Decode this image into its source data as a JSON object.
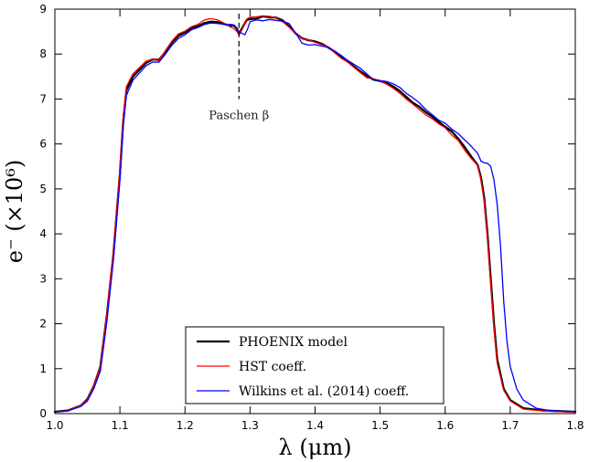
{
  "chart_data": {
    "type": "line",
    "xlabel": "λ (μm)",
    "ylabel": "e⁻ (×10⁶)",
    "xlim": [
      1.0,
      1.8
    ],
    "ylim": [
      0,
      9
    ],
    "x_ticks": [
      "1.0",
      "1.1",
      "1.2",
      "1.3",
      "1.4",
      "1.5",
      "1.6",
      "1.7",
      "1.8"
    ],
    "y_ticks": [
      "0",
      "1",
      "2",
      "3",
      "4",
      "5",
      "6",
      "7",
      "8",
      "9"
    ],
    "grid": false,
    "legend_position": "bottom-center",
    "annotation": {
      "text": "Paschen β",
      "x": 1.283,
      "y_from": 7.0,
      "y_to": 8.9
    },
    "series": [
      {
        "name": "PHOENIX model",
        "color": "#000000",
        "line_width": 2.3,
        "points": [
          [
            1.0,
            0.04
          ],
          [
            1.02,
            0.07
          ],
          [
            1.04,
            0.18
          ],
          [
            1.05,
            0.32
          ],
          [
            1.06,
            0.62
          ],
          [
            1.07,
            1.05
          ],
          [
            1.08,
            2.2
          ],
          [
            1.09,
            3.55
          ],
          [
            1.1,
            5.35
          ],
          [
            1.105,
            6.5
          ],
          [
            1.11,
            7.2
          ],
          [
            1.12,
            7.5
          ],
          [
            1.13,
            7.65
          ],
          [
            1.14,
            7.8
          ],
          [
            1.15,
            7.88
          ],
          [
            1.16,
            7.87
          ],
          [
            1.17,
            8.05
          ],
          [
            1.18,
            8.26
          ],
          [
            1.19,
            8.41
          ],
          [
            1.2,
            8.48
          ],
          [
            1.21,
            8.58
          ],
          [
            1.22,
            8.62
          ],
          [
            1.23,
            8.69
          ],
          [
            1.24,
            8.72
          ],
          [
            1.25,
            8.71
          ],
          [
            1.26,
            8.67
          ],
          [
            1.27,
            8.63
          ],
          [
            1.275,
            8.64
          ],
          [
            1.28,
            8.56
          ],
          [
            1.283,
            8.45
          ],
          [
            1.288,
            8.58
          ],
          [
            1.295,
            8.76
          ],
          [
            1.3,
            8.78
          ],
          [
            1.31,
            8.79
          ],
          [
            1.32,
            8.84
          ],
          [
            1.33,
            8.82
          ],
          [
            1.34,
            8.81
          ],
          [
            1.35,
            8.75
          ],
          [
            1.36,
            8.62
          ],
          [
            1.37,
            8.46
          ],
          [
            1.38,
            8.35
          ],
          [
            1.39,
            8.31
          ],
          [
            1.4,
            8.28
          ],
          [
            1.41,
            8.23
          ],
          [
            1.42,
            8.15
          ],
          [
            1.43,
            8.05
          ],
          [
            1.44,
            7.93
          ],
          [
            1.45,
            7.84
          ],
          [
            1.46,
            7.72
          ],
          [
            1.47,
            7.61
          ],
          [
            1.48,
            7.51
          ],
          [
            1.49,
            7.43
          ],
          [
            1.5,
            7.4
          ],
          [
            1.51,
            7.35
          ],
          [
            1.52,
            7.28
          ],
          [
            1.53,
            7.18
          ],
          [
            1.54,
            7.05
          ],
          [
            1.55,
            6.92
          ],
          [
            1.56,
            6.83
          ],
          [
            1.57,
            6.71
          ],
          [
            1.58,
            6.61
          ],
          [
            1.59,
            6.49
          ],
          [
            1.6,
            6.38
          ],
          [
            1.61,
            6.28
          ],
          [
            1.62,
            6.12
          ],
          [
            1.63,
            5.93
          ],
          [
            1.64,
            5.72
          ],
          [
            1.65,
            5.53
          ],
          [
            1.655,
            5.25
          ],
          [
            1.66,
            4.8
          ],
          [
            1.665,
            4.0
          ],
          [
            1.67,
            3.0
          ],
          [
            1.675,
            2.0
          ],
          [
            1.68,
            1.2
          ],
          [
            1.69,
            0.55
          ],
          [
            1.7,
            0.3
          ],
          [
            1.72,
            0.12
          ],
          [
            1.75,
            0.07
          ],
          [
            1.8,
            0.04
          ]
        ]
      },
      {
        "name": "HST coeff.",
        "color": "#ff0000",
        "line_width": 1.3,
        "points": [
          [
            1.0,
            0.04
          ],
          [
            1.02,
            0.07
          ],
          [
            1.04,
            0.18
          ],
          [
            1.05,
            0.31
          ],
          [
            1.06,
            0.62
          ],
          [
            1.07,
            1.05
          ],
          [
            1.08,
            2.22
          ],
          [
            1.09,
            3.62
          ],
          [
            1.1,
            5.45
          ],
          [
            1.105,
            6.62
          ],
          [
            1.11,
            7.28
          ],
          [
            1.12,
            7.56
          ],
          [
            1.13,
            7.7
          ],
          [
            1.14,
            7.84
          ],
          [
            1.15,
            7.89
          ],
          [
            1.16,
            7.85
          ],
          [
            1.17,
            8.08
          ],
          [
            1.18,
            8.29
          ],
          [
            1.19,
            8.45
          ],
          [
            1.2,
            8.51
          ],
          [
            1.21,
            8.61
          ],
          [
            1.22,
            8.66
          ],
          [
            1.23,
            8.76
          ],
          [
            1.24,
            8.79
          ],
          [
            1.25,
            8.76
          ],
          [
            1.26,
            8.69
          ],
          [
            1.27,
            8.6
          ],
          [
            1.275,
            8.57
          ],
          [
            1.28,
            8.5
          ],
          [
            1.283,
            8.42
          ],
          [
            1.288,
            8.55
          ],
          [
            1.295,
            8.78
          ],
          [
            1.3,
            8.82
          ],
          [
            1.31,
            8.83
          ],
          [
            1.32,
            8.85
          ],
          [
            1.33,
            8.84
          ],
          [
            1.34,
            8.8
          ],
          [
            1.35,
            8.72
          ],
          [
            1.36,
            8.6
          ],
          [
            1.37,
            8.45
          ],
          [
            1.38,
            8.34
          ],
          [
            1.39,
            8.32
          ],
          [
            1.4,
            8.26
          ],
          [
            1.41,
            8.21
          ],
          [
            1.42,
            8.16
          ],
          [
            1.43,
            8.03
          ],
          [
            1.44,
            7.91
          ],
          [
            1.45,
            7.82
          ],
          [
            1.46,
            7.7
          ],
          [
            1.47,
            7.58
          ],
          [
            1.48,
            7.47
          ],
          [
            1.49,
            7.45
          ],
          [
            1.5,
            7.4
          ],
          [
            1.51,
            7.33
          ],
          [
            1.52,
            7.24
          ],
          [
            1.53,
            7.13
          ],
          [
            1.54,
            7.0
          ],
          [
            1.55,
            6.89
          ],
          [
            1.56,
            6.77
          ],
          [
            1.57,
            6.65
          ],
          [
            1.58,
            6.56
          ],
          [
            1.59,
            6.45
          ],
          [
            1.6,
            6.36
          ],
          [
            1.61,
            6.2
          ],
          [
            1.62,
            6.08
          ],
          [
            1.63,
            5.86
          ],
          [
            1.64,
            5.68
          ],
          [
            1.65,
            5.52
          ],
          [
            1.655,
            5.2
          ],
          [
            1.66,
            4.72
          ],
          [
            1.665,
            3.92
          ],
          [
            1.67,
            2.9
          ],
          [
            1.675,
            1.9
          ],
          [
            1.68,
            1.12
          ],
          [
            1.69,
            0.52
          ],
          [
            1.7,
            0.28
          ],
          [
            1.72,
            0.1
          ],
          [
            1.75,
            0.06
          ],
          [
            1.8,
            0.03
          ]
        ]
      },
      {
        "name": "Wilkins et al. (2014) coeff.",
        "color": "#0000ff",
        "line_width": 1.3,
        "points": [
          [
            1.0,
            0.04
          ],
          [
            1.02,
            0.06
          ],
          [
            1.04,
            0.16
          ],
          [
            1.05,
            0.28
          ],
          [
            1.06,
            0.56
          ],
          [
            1.07,
            0.95
          ],
          [
            1.08,
            2.05
          ],
          [
            1.09,
            3.42
          ],
          [
            1.1,
            5.2
          ],
          [
            1.105,
            6.38
          ],
          [
            1.11,
            7.08
          ],
          [
            1.12,
            7.42
          ],
          [
            1.13,
            7.58
          ],
          [
            1.14,
            7.74
          ],
          [
            1.15,
            7.82
          ],
          [
            1.16,
            7.82
          ],
          [
            1.17,
            8.0
          ],
          [
            1.18,
            8.2
          ],
          [
            1.19,
            8.35
          ],
          [
            1.2,
            8.43
          ],
          [
            1.21,
            8.54
          ],
          [
            1.22,
            8.59
          ],
          [
            1.23,
            8.66
          ],
          [
            1.24,
            8.69
          ],
          [
            1.25,
            8.68
          ],
          [
            1.26,
            8.66
          ],
          [
            1.27,
            8.66
          ],
          [
            1.275,
            8.65
          ],
          [
            1.28,
            8.58
          ],
          [
            1.283,
            8.49
          ],
          [
            1.288,
            8.46
          ],
          [
            1.292,
            8.43
          ],
          [
            1.296,
            8.55
          ],
          [
            1.3,
            8.72
          ],
          [
            1.31,
            8.76
          ],
          [
            1.32,
            8.74
          ],
          [
            1.33,
            8.77
          ],
          [
            1.34,
            8.75
          ],
          [
            1.35,
            8.73
          ],
          [
            1.36,
            8.68
          ],
          [
            1.37,
            8.47
          ],
          [
            1.38,
            8.24
          ],
          [
            1.39,
            8.2
          ],
          [
            1.4,
            8.21
          ],
          [
            1.41,
            8.18
          ],
          [
            1.42,
            8.15
          ],
          [
            1.43,
            8.07
          ],
          [
            1.44,
            7.97
          ],
          [
            1.45,
            7.86
          ],
          [
            1.46,
            7.77
          ],
          [
            1.47,
            7.68
          ],
          [
            1.48,
            7.55
          ],
          [
            1.49,
            7.43
          ],
          [
            1.5,
            7.41
          ],
          [
            1.51,
            7.39
          ],
          [
            1.52,
            7.34
          ],
          [
            1.53,
            7.26
          ],
          [
            1.54,
            7.13
          ],
          [
            1.55,
            7.03
          ],
          [
            1.56,
            6.92
          ],
          [
            1.57,
            6.77
          ],
          [
            1.58,
            6.65
          ],
          [
            1.59,
            6.53
          ],
          [
            1.6,
            6.46
          ],
          [
            1.61,
            6.33
          ],
          [
            1.62,
            6.23
          ],
          [
            1.63,
            6.09
          ],
          [
            1.64,
            5.95
          ],
          [
            1.65,
            5.79
          ],
          [
            1.655,
            5.62
          ],
          [
            1.66,
            5.58
          ],
          [
            1.665,
            5.57
          ],
          [
            1.67,
            5.5
          ],
          [
            1.675,
            5.2
          ],
          [
            1.68,
            4.65
          ],
          [
            1.685,
            3.75
          ],
          [
            1.69,
            2.5
          ],
          [
            1.695,
            1.6
          ],
          [
            1.7,
            1.05
          ],
          [
            1.71,
            0.55
          ],
          [
            1.72,
            0.3
          ],
          [
            1.74,
            0.12
          ],
          [
            1.76,
            0.07
          ],
          [
            1.8,
            0.04
          ]
        ]
      }
    ]
  }
}
